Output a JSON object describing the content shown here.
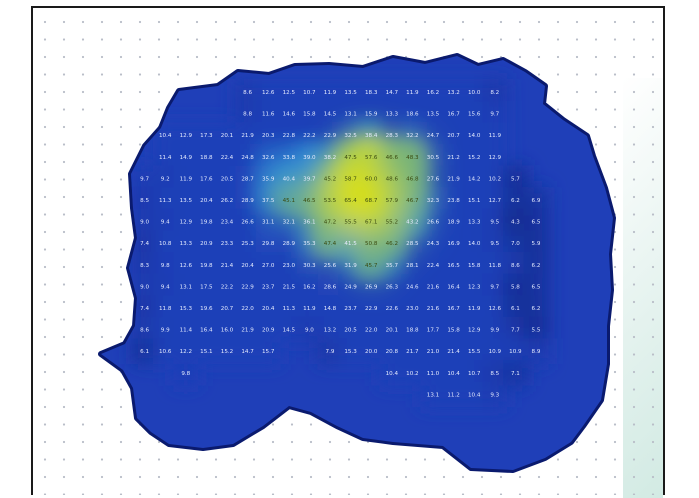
{
  "chart_data": {
    "type": "heatmap",
    "title": "",
    "xlabel": "",
    "ylabel": "",
    "colors": {
      "frame": "#1a1a1a",
      "dot_grid": "#b9bec8",
      "edge": "#0a1a6e",
      "low": "#1f3fb8",
      "mid": "#2f8fd8",
      "high": "#b8d61c",
      "peak": "#e8e410",
      "cell_text": "#e6ecff"
    },
    "rows": [
      [
        "",
        "",
        "",
        "",
        "",
        "",
        "8.6",
        "12.6",
        "12.5",
        "10.7",
        "11.9",
        "13.5",
        "18.3",
        "14.7",
        "11.9",
        "16.2",
        "13.2",
        "10.0",
        "8.2",
        "",
        "",
        "",
        ""
      ],
      [
        "",
        "",
        "",
        "",
        "",
        "",
        "8.8",
        "11.6",
        "14.6",
        "15.8",
        "14.5",
        "13.1",
        "15.9",
        "13.3",
        "18.6",
        "13.5",
        "16.7",
        "15.6",
        "9.7",
        "",
        "",
        "",
        ""
      ],
      [
        "",
        "",
        "10.4",
        "12.9",
        "17.3",
        "20.1",
        "21.9",
        "20.3",
        "22.8",
        "22.2",
        "22.9",
        "32.5",
        "38.4",
        "28.3",
        "32.2",
        "24.7",
        "20.7",
        "14.0",
        "11.9",
        "",
        "",
        "",
        ""
      ],
      [
        "",
        "",
        "11.4",
        "14.9",
        "18.8",
        "22.4",
        "24.8",
        "32.6",
        "33.8",
        "39.0",
        "38.2",
        "47.5",
        "57.6",
        "46.6",
        "48.3",
        "30.5",
        "21.2",
        "15.2",
        "12.9",
        "",
        "",
        "",
        ""
      ],
      [
        "",
        "9.7",
        "9.2",
        "11.9",
        "17.6",
        "20.5",
        "28.7",
        "35.9",
        "40.4",
        "39.7",
        "45.2",
        "58.7",
        "60.0",
        "48.6",
        "46.8",
        "27.6",
        "21.9",
        "14.2",
        "10.2",
        "5.7",
        "",
        "",
        ""
      ],
      [
        "",
        "8.5",
        "11.3",
        "13.5",
        "20.4",
        "26.2",
        "28.9",
        "37.5",
        "45.1",
        "46.5",
        "53.5",
        "65.4",
        "68.7",
        "57.9",
        "46.7",
        "32.3",
        "23.8",
        "15.1",
        "12.7",
        "6.2",
        "6.9",
        "",
        ""
      ],
      [
        "",
        "9.0",
        "9.4",
        "12.9",
        "19.8",
        "23.4",
        "26.6",
        "31.1",
        "32.1",
        "36.1",
        "47.2",
        "55.5",
        "67.1",
        "55.2",
        "43.2",
        "26.6",
        "18.9",
        "13.3",
        "9.5",
        "4.3",
        "6.5",
        "",
        ""
      ],
      [
        "",
        "7.4",
        "10.8",
        "13.3",
        "20.9",
        "23.3",
        "25.3",
        "29.8",
        "28.9",
        "35.3",
        "47.4",
        "41.5",
        "50.8",
        "46.2",
        "28.5",
        "24.3",
        "16.9",
        "14.0",
        "9.5",
        "7.0",
        "5.9",
        "",
        ""
      ],
      [
        "",
        "8.3",
        "9.8",
        "12.6",
        "19.8",
        "21.4",
        "20.4",
        "27.0",
        "23.0",
        "30.3",
        "25.6",
        "31.9",
        "45.7",
        "35.7",
        "28.1",
        "22.4",
        "16.5",
        "15.8",
        "11.8",
        "8.6",
        "6.2",
        "",
        ""
      ],
      [
        "",
        "9.0",
        "9.4",
        "13.1",
        "17.5",
        "22.2",
        "22.9",
        "23.7",
        "21.5",
        "16.2",
        "28.6",
        "24.9",
        "26.9",
        "26.3",
        "24.6",
        "21.6",
        "16.4",
        "12.3",
        "9.7",
        "5.8",
        "6.5",
        "",
        ""
      ],
      [
        "",
        "7.4",
        "11.8",
        "15.3",
        "19.6",
        "20.7",
        "22.0",
        "20.4",
        "11.3",
        "11.9",
        "14.8",
        "23.7",
        "22.9",
        "22.6",
        "23.0",
        "21.6",
        "16.7",
        "11.9",
        "12.6",
        "6.1",
        "6.2",
        "",
        ""
      ],
      [
        "",
        "8.6",
        "9.9",
        "11.4",
        "16.4",
        "16.0",
        "21.9",
        "20.9",
        "14.5",
        "9.0",
        "13.2",
        "20.5",
        "22.0",
        "20.1",
        "18.8",
        "17.7",
        "15.8",
        "12.9",
        "9.9",
        "7.7",
        "5.5",
        "",
        ""
      ],
      [
        "",
        "6.1",
        "10.6",
        "12.2",
        "15.1",
        "15.2",
        "14.7",
        "15.7",
        "",
        "",
        "7.9",
        "15.3",
        "20.0",
        "20.8",
        "21.7",
        "21.0",
        "21.4",
        "15.5",
        "10.9",
        "10.9",
        "8.9",
        "",
        ""
      ],
      [
        "",
        "",
        "",
        "9.8",
        "",
        "",
        "",
        "",
        "",
        "",
        "",
        "",
        "",
        "10.4",
        "10.2",
        "11.0",
        "10.4",
        "10.7",
        "8.5",
        "7.1",
        "",
        "",
        ""
      ],
      [
        "",
        "",
        "",
        "",
        "",
        "",
        "",
        "",
        "",
        "",
        "",
        "",
        "",
        "",
        "",
        "13.1",
        "11.2",
        "10.4",
        "9.3",
        "",
        "",
        "",
        ""
      ]
    ]
  }
}
